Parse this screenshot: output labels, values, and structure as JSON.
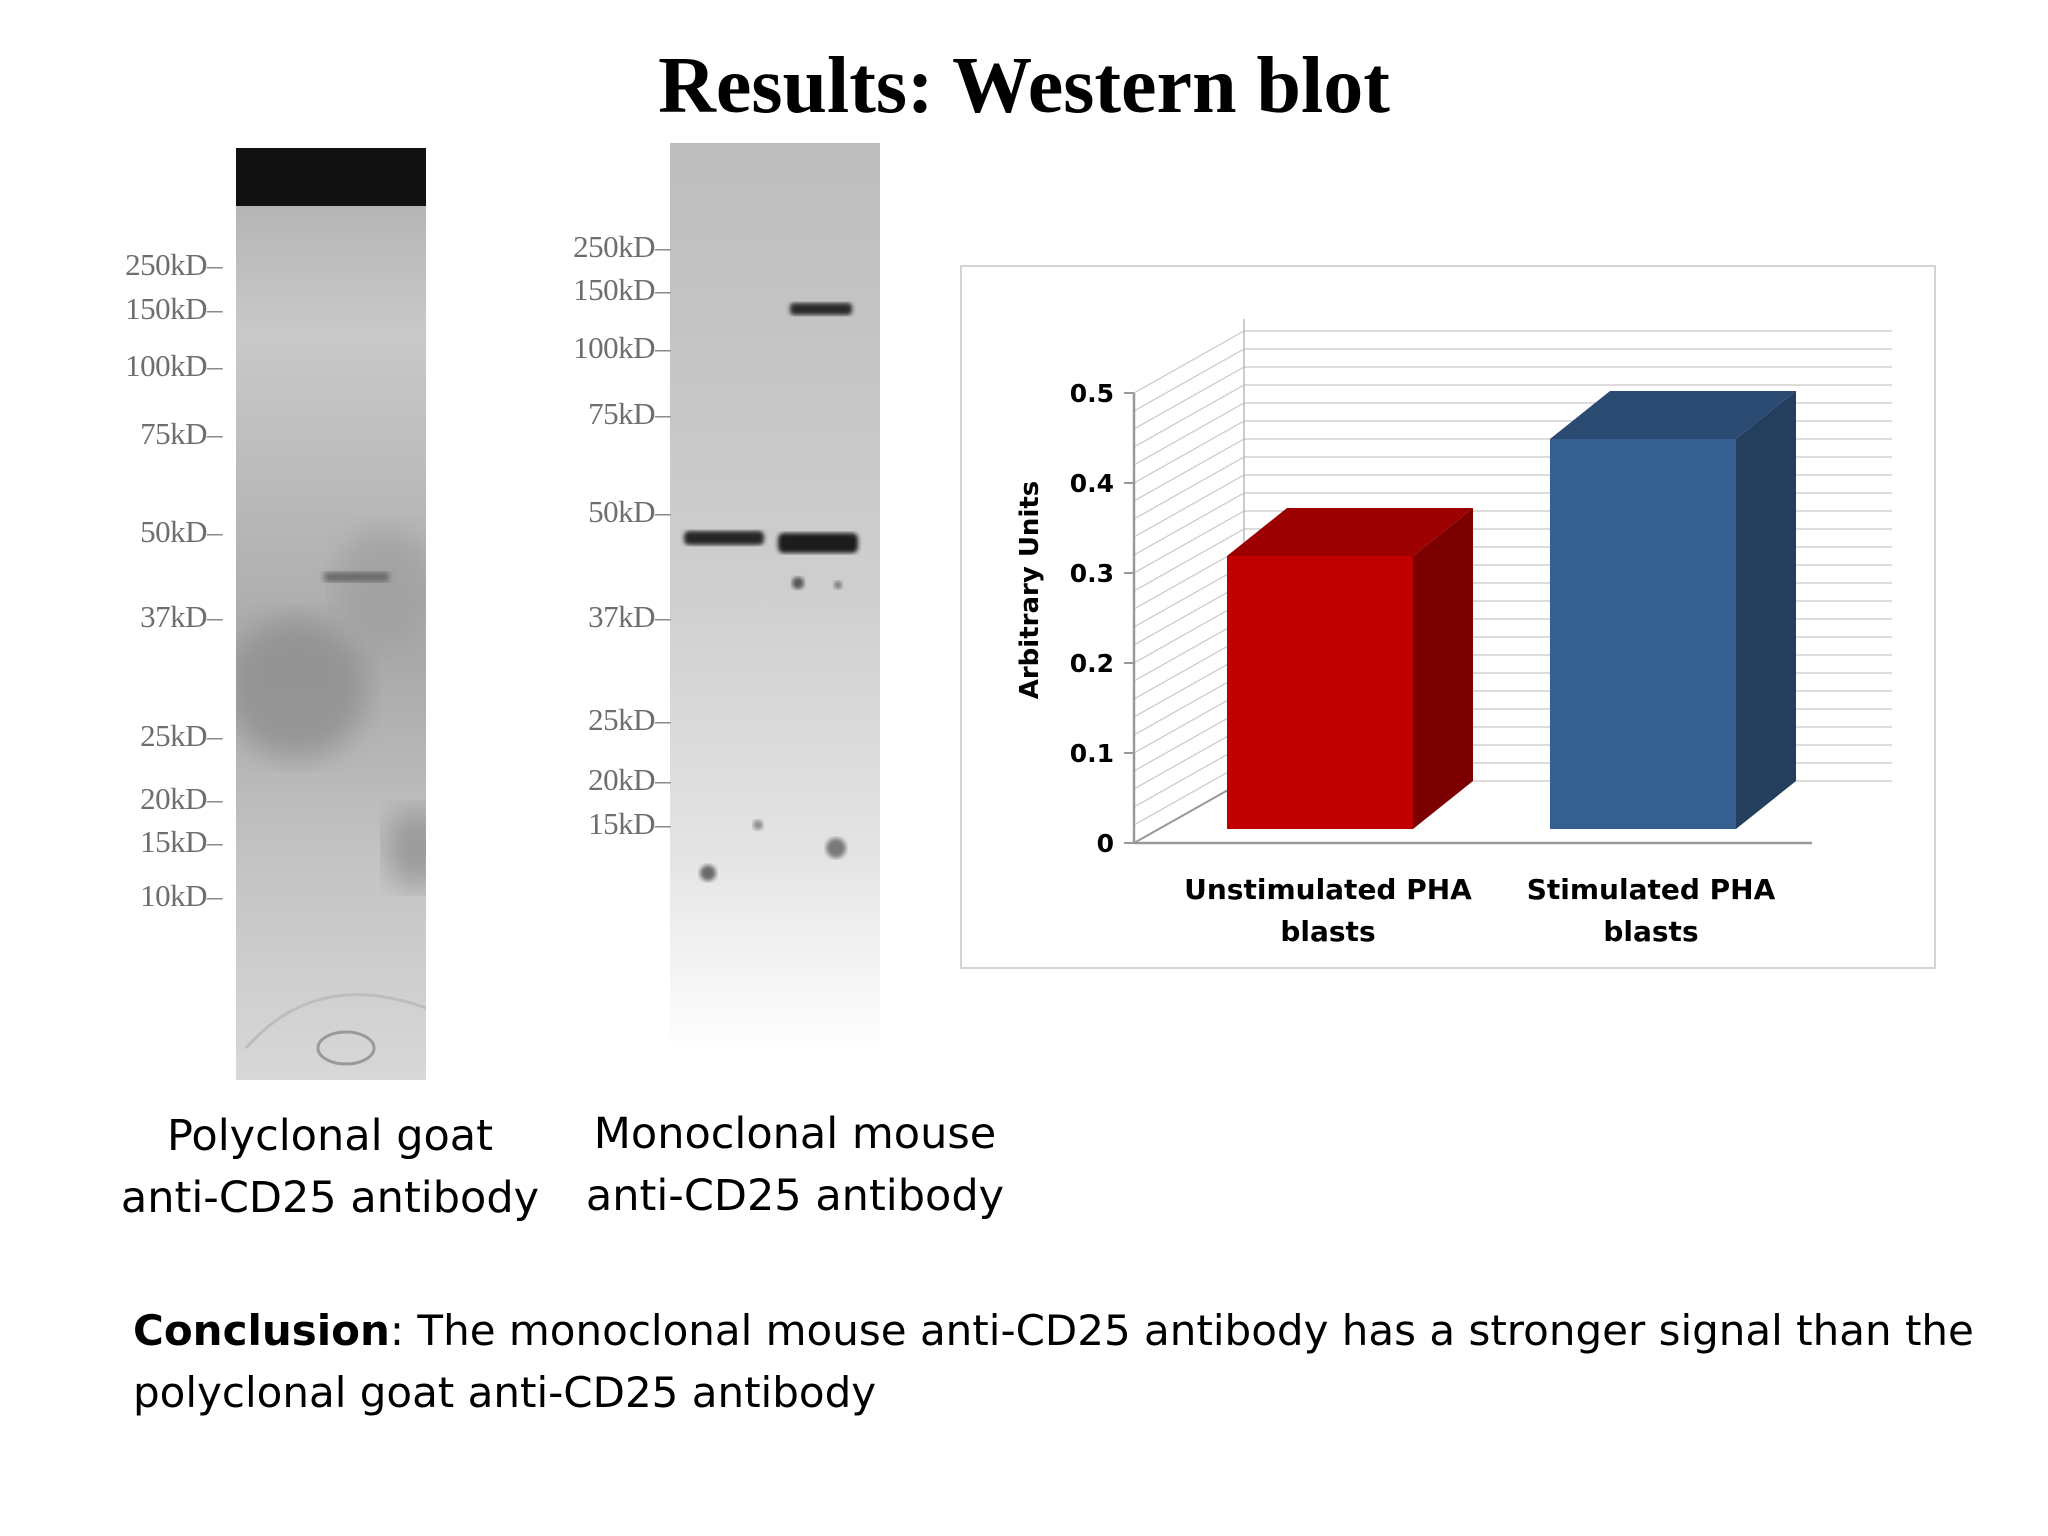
{
  "slide": {
    "title": "Results: Western blot"
  },
  "blots": {
    "polyclonal": {
      "markers": [
        "250kD",
        "150kD",
        "100kD",
        "75kD",
        "50kD",
        "37kD",
        "25kD",
        "20kD",
        "15kD",
        "10kD"
      ],
      "caption_line1": "Polyclonal goat",
      "caption_line2": "anti-CD25 antibody"
    },
    "monoclonal": {
      "markers": [
        "250kD",
        "150kD",
        "100kD",
        "75kD",
        "50kD",
        "37kD",
        "25kD",
        "20kD",
        "15kD"
      ],
      "caption_line1": "Monoclonal mouse",
      "caption_line2": "anti-CD25 antibody"
    }
  },
  "conclusion": {
    "label": "Conclusion",
    "text": ": The monoclonal mouse anti-CD25 antibody has a stronger signal than the polyclonal goat anti-CD25 antibody"
  },
  "chart_data": {
    "type": "bar",
    "style": "3d",
    "title": "",
    "xlabel": "",
    "ylabel": "Arbitrary Units",
    "categories": [
      "Unstimulated PHA blasts",
      "Stimulated PHA blasts"
    ],
    "category_lines": [
      [
        "Unstimulated PHA",
        "blasts"
      ],
      [
        "Stimulated PHA",
        "blasts"
      ]
    ],
    "values": [
      0.33,
      0.46
    ],
    "colors": [
      "#c00000",
      "#365f91"
    ],
    "ylim": [
      0,
      0.5
    ],
    "yticks": [
      "0",
      "0.1",
      "0.2",
      "0.3",
      "0.4",
      "0.5"
    ],
    "grid": true,
    "legend": "none"
  }
}
